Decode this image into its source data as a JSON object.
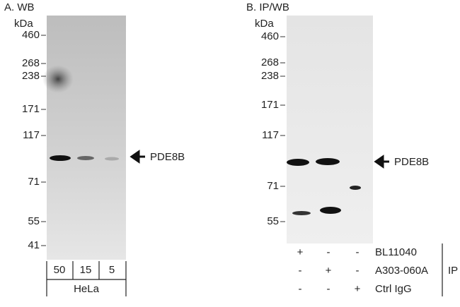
{
  "panels": [
    {
      "title": "A. WB",
      "unit": "kDa",
      "markers": [
        "460",
        "268",
        "238",
        "171",
        "117",
        "71",
        "55",
        "41"
      ],
      "band_label": "PDE8B",
      "lanes": [
        "50",
        "15",
        "5"
      ],
      "sample": "HeLa"
    },
    {
      "title": "B. IP/WB",
      "unit": "kDa",
      "markers": [
        "460",
        "268",
        "238",
        "171",
        "117",
        "71",
        "55"
      ],
      "band_label": "PDE8B",
      "ip_rows": [
        {
          "symbols": [
            "+",
            "-",
            "-"
          ],
          "label": "BL11040"
        },
        {
          "symbols": [
            "-",
            "+",
            "-"
          ],
          "label": "A303-060A"
        },
        {
          "symbols": [
            "-",
            "-",
            "+"
          ],
          "label": "Ctrl IgG"
        }
      ],
      "ip_label": "IP"
    }
  ]
}
